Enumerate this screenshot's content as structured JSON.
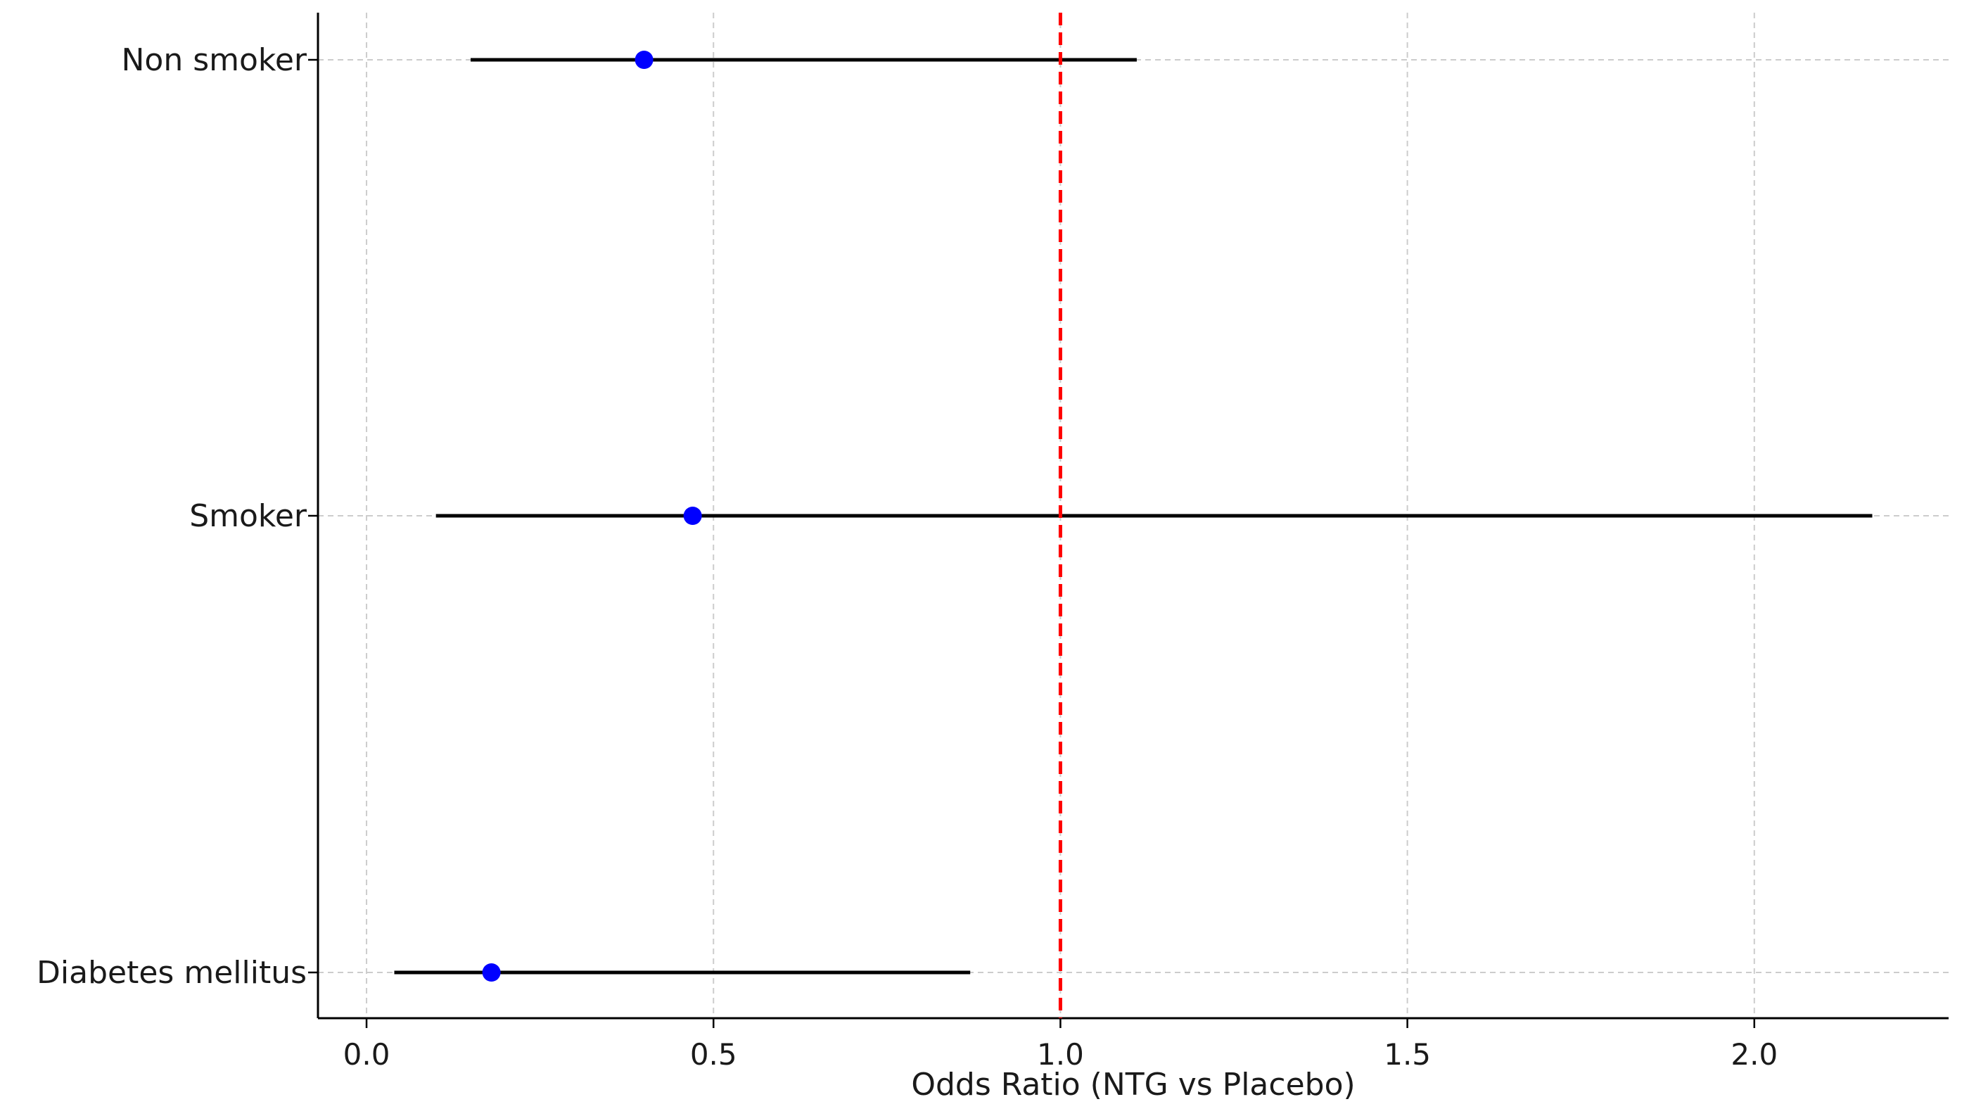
{
  "chart_data": {
    "type": "forest",
    "title": "",
    "xlabel": "Odds Ratio (NTG vs Placebo)",
    "ylabel": "",
    "xlim": [
      -0.07,
      2.28
    ],
    "xticks": [
      0.0,
      0.5,
      1.0,
      1.5,
      2.0
    ],
    "xtick_labels": [
      "0.0",
      "0.5",
      "1.0",
      "1.5",
      "2.0"
    ],
    "reference_line": {
      "x": 1.0,
      "color": "#ff0000",
      "style": "dashed"
    },
    "grid": true,
    "categories": [
      "Non smoker",
      "Smoker",
      "Diabetes mellitus"
    ],
    "points": [
      {
        "label": "Non smoker",
        "or": 0.4,
        "ci_low": 0.15,
        "ci_high": 1.11
      },
      {
        "label": "Smoker",
        "or": 0.47,
        "ci_low": 0.1,
        "ci_high": 2.17
      },
      {
        "label": "Diabetes mellitus",
        "or": 0.18,
        "ci_low": 0.04,
        "ci_high": 0.87
      }
    ],
    "colors": {
      "point": "#0000ff",
      "ci_line": "#000000",
      "grid": "#cccccc",
      "axis": "#000000"
    }
  }
}
